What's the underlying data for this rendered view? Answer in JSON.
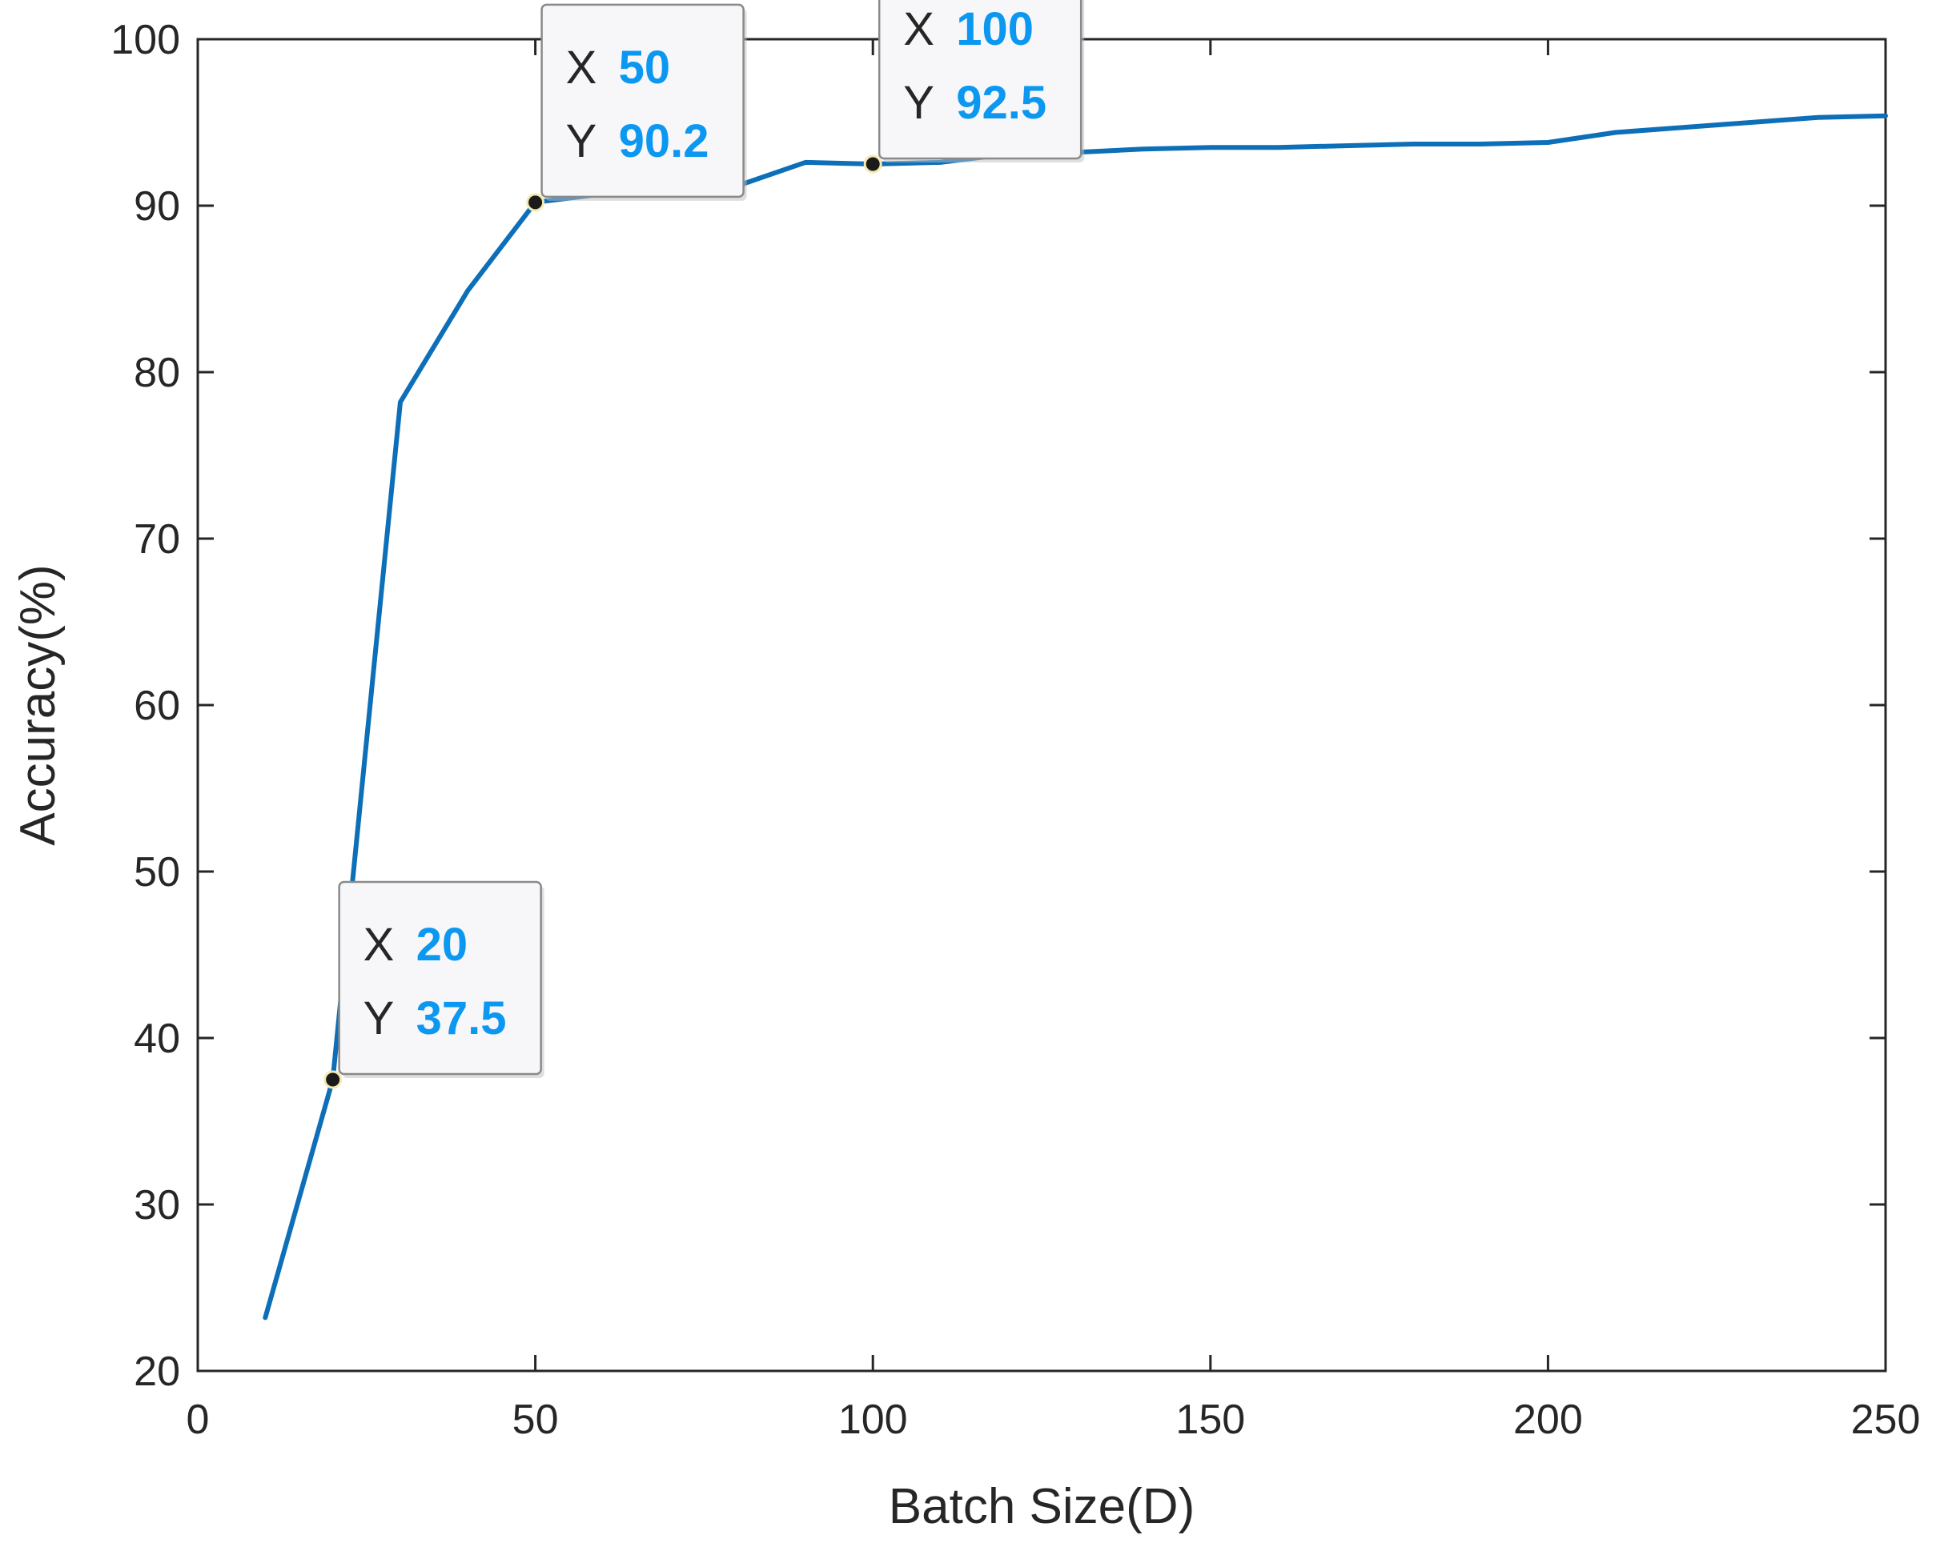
{
  "chart_data": {
    "type": "line",
    "title": "",
    "xlabel": "Batch Size(D)",
    "ylabel": "Accuracy(%)",
    "xlim": [
      0,
      250
    ],
    "ylim": [
      20,
      100
    ],
    "xticks": [
      "0",
      "50",
      "100",
      "150",
      "200",
      "250"
    ],
    "yticks": [
      "20",
      "30",
      "40",
      "50",
      "60",
      "70",
      "80",
      "90",
      "100"
    ],
    "grid": false,
    "series": [
      {
        "color": "#0d6fb8",
        "x": [
          10,
          20,
          30,
          40,
          50,
          60,
          70,
          80,
          90,
          100,
          110,
          120,
          130,
          140,
          150,
          160,
          170,
          180,
          190,
          200,
          210,
          220,
          230,
          240,
          250
        ],
        "y": [
          23.2,
          37.5,
          78.2,
          84.9,
          90.2,
          90.7,
          90.8,
          91.2,
          92.6,
          92.5,
          92.6,
          93.1,
          93.2,
          93.4,
          93.5,
          93.5,
          93.6,
          93.7,
          93.7,
          93.8,
          94.4,
          94.7,
          95.0,
          95.3,
          95.4
        ]
      }
    ],
    "datatips": [
      {
        "x_key": "X",
        "y_key": "Y",
        "x": "20",
        "y": "37.5"
      },
      {
        "x_key": "X",
        "y_key": "Y",
        "x": "50",
        "y": "90.2"
      },
      {
        "x_key": "X",
        "y_key": "Y",
        "x": "100",
        "y": "92.5"
      }
    ],
    "colors": {
      "line": "#0d6fb8",
      "datatip_value": "#0c98f0",
      "marker": "#1a1a1a",
      "axis": "#262626"
    }
  }
}
